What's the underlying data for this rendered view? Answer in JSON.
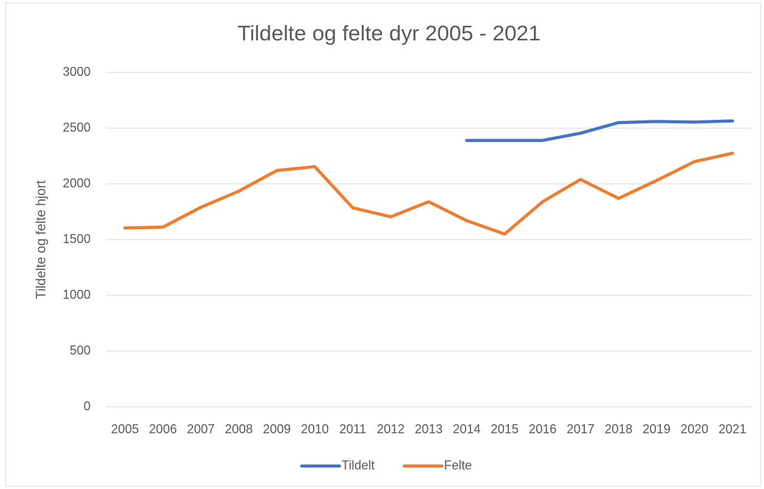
{
  "chart_data": {
    "type": "line",
    "title": "Tildelte og felte dyr 2005 - 2021",
    "y_label": "Tildelte og felte hjort",
    "categories": [
      "2005",
      "2006",
      "2007",
      "2008",
      "2009",
      "2010",
      "2011",
      "2012",
      "2013",
      "2014",
      "2015",
      "2016",
      "2017",
      "2018",
      "2019",
      "2020",
      "2021"
    ],
    "series": [
      {
        "name": "Tildelt",
        "color": "#4472c4",
        "values": [
          null,
          null,
          null,
          null,
          null,
          null,
          null,
          null,
          null,
          2390,
          2390,
          2390,
          2455,
          2550,
          2560,
          2555,
          2565
        ]
      },
      {
        "name": "Felte",
        "color": "#ed7d31",
        "values": [
          1605,
          1612,
          1790,
          1935,
          2120,
          2155,
          1785,
          1705,
          1840,
          1670,
          1550,
          1840,
          2040,
          1870,
          2030,
          2200,
          2275
        ]
      }
    ],
    "ylim": [
      0,
      3000
    ],
    "yticks": [
      0,
      500,
      1000,
      1500,
      2000,
      2500,
      3000
    ],
    "grid": true,
    "legend": "bottom"
  }
}
